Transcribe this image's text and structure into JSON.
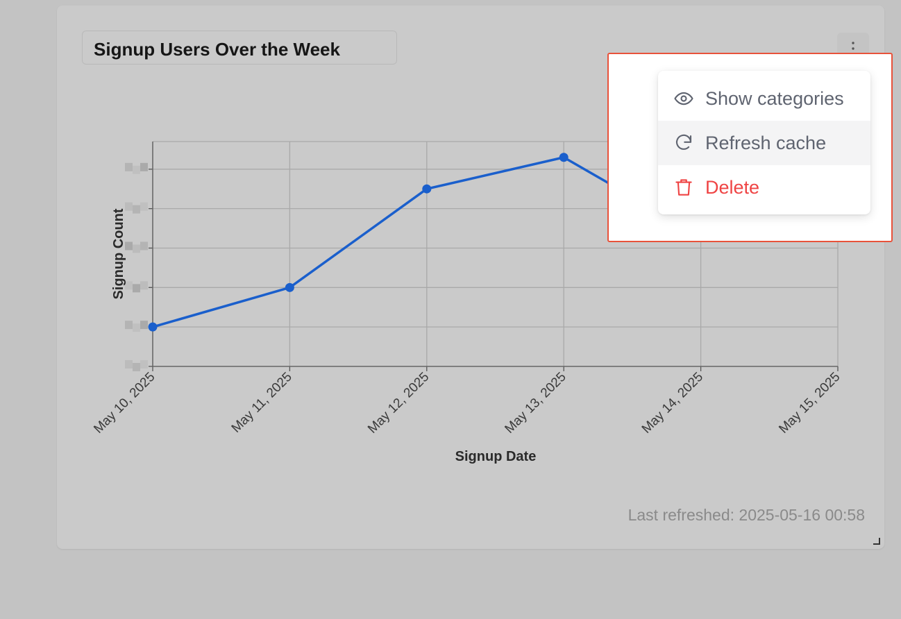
{
  "card": {
    "title": "Signup Users Over the Week",
    "last_refreshed": "Last refreshed: 2025-05-16 00:58"
  },
  "menu": {
    "items": [
      {
        "label": "Show categories",
        "icon": "eye-icon"
      },
      {
        "label": "Refresh cache",
        "icon": "refresh-icon"
      },
      {
        "label": "Delete",
        "icon": "trash-icon"
      }
    ]
  },
  "colors": {
    "line": "#1a5fcc",
    "danger": "#ef4444",
    "highlight": "#e8523a"
  },
  "chart_data": {
    "type": "line",
    "categories": [
      "May 10, 2025",
      "May 11, 2025",
      "May 12, 2025",
      "May 13, 2025",
      "May 14, 2025",
      "May 15, 2025"
    ],
    "series": [
      {
        "values": [
          1,
          2,
          4.5,
          5.3,
          3.3,
          3.3
        ]
      }
    ],
    "xlabel": "Signup Date",
    "ylabel": "Signup Count",
    "ylim": [
      0.0,
      5.7
    ],
    "grid": true,
    "legend": "none"
  }
}
